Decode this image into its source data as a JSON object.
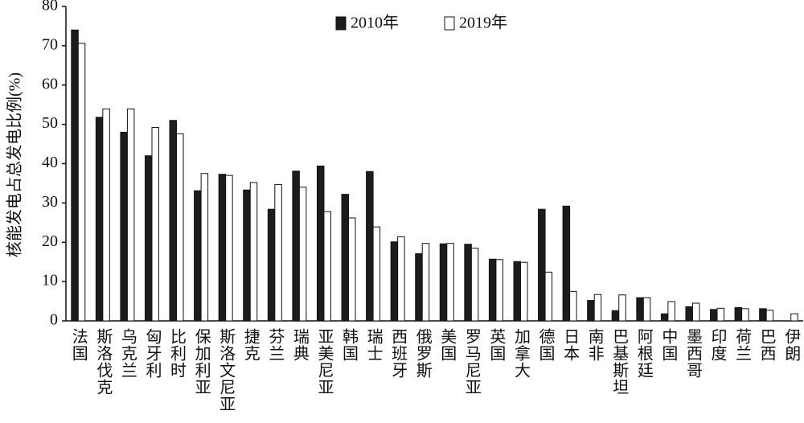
{
  "chart_data": {
    "type": "bar",
    "y_label": "核能发电占总发电比例(%)",
    "categories": [
      "法国",
      "斯洛伐克",
      "乌克兰",
      "匈牙利",
      "比利时",
      "保加利亚",
      "斯洛文尼亚",
      "捷克",
      "芬兰",
      "瑞典",
      "亚美尼亚",
      "韩国",
      "瑞士",
      "西班牙",
      "俄罗斯",
      "美国",
      "罗马尼亚",
      "英国",
      "加拿大",
      "德国",
      "日本",
      "南非",
      "巴基斯坦",
      "阿根廷",
      "中国",
      "墨西哥",
      "印度",
      "荷兰",
      "巴西",
      "伊朗"
    ],
    "series": [
      {
        "name": "2010年",
        "color": "#1c1c1c",
        "values": [
          74,
          51.8,
          48,
          42,
          51,
          33.1,
          37.3,
          33.3,
          28.4,
          38.1,
          39.4,
          32.2,
          38,
          20.1,
          17.1,
          19.6,
          19.5,
          15.7,
          15.1,
          28.4,
          29.2,
          5.2,
          2.6,
          5.9,
          1.8,
          3.6,
          2.9,
          3.4,
          3.1,
          0
        ]
      },
      {
        "name": "2019年",
        "color": "#ffffff",
        "values": [
          70.6,
          53.9,
          53.9,
          49.2,
          47.6,
          37.5,
          37,
          35.2,
          34.7,
          34,
          27.8,
          26.2,
          23.9,
          21.4,
          19.7,
          19.7,
          18.5,
          15.6,
          14.9,
          12.4,
          7.5,
          6.7,
          6.6,
          5.9,
          4.9,
          4.5,
          3.2,
          3.1,
          2.7,
          1.8
        ]
      }
    ],
    "ylim": [
      0,
      80
    ],
    "yticks": [
      0,
      10,
      20,
      30,
      40,
      50,
      60,
      70,
      80
    ],
    "grid": false
  }
}
